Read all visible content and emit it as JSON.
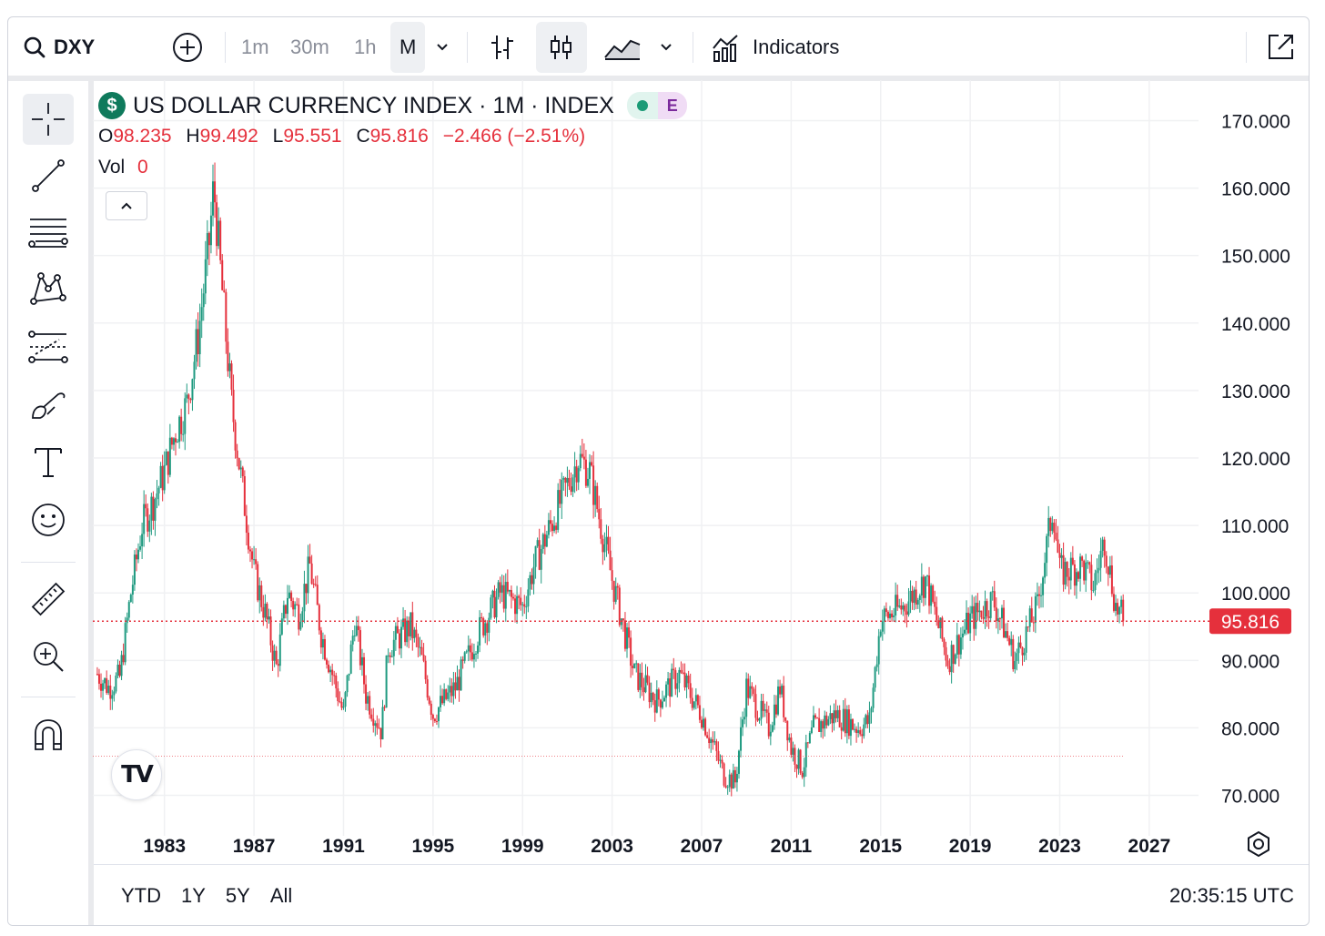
{
  "toolbar": {
    "symbol": "DXY",
    "intervals": [
      "1m",
      "30m",
      "1h",
      "M"
    ],
    "active_interval": "M",
    "indicators_label": "Indicators"
  },
  "legend": {
    "title": "US DOLLAR CURRENCY INDEX · 1M · INDEX",
    "status_letter": "E",
    "ohlc": {
      "o_label": "O",
      "o": "98.235",
      "h_label": "H",
      "h": "99.492",
      "l_label": "L",
      "l": "95.551",
      "c_label": "C",
      "c": "95.816",
      "change": "−2.466 (−2.51%)"
    },
    "vol_label": "Vol",
    "vol_value": "0"
  },
  "bottom": {
    "ranges": [
      "YTD",
      "1Y",
      "5Y",
      "All"
    ],
    "clock": "20:35:15 UTC"
  },
  "colors": {
    "up": "#1f9a80",
    "down": "#e5303c",
    "grid": "#f0f1f3",
    "price_line": "#e5303c"
  },
  "chart_data": {
    "type": "candlestick",
    "title": "US DOLLAR CURRENCY INDEX · 1M · INDEX",
    "interval": "1M",
    "last_price": 95.816,
    "last_price_label": "95.816",
    "y_ticks": [
      "170.000",
      "160.000",
      "150.000",
      "140.000",
      "130.000",
      "120.000",
      "110.000",
      "100.000",
      "90.000",
      "80.000",
      "70.000"
    ],
    "ylim": [
      64,
      176
    ],
    "x_ticks": [
      "1983",
      "1987",
      "1991",
      "1995",
      "1999",
      "2003",
      "2007",
      "2011",
      "2015",
      "2019",
      "2023",
      "2027"
    ],
    "xlim": [
      1979.8,
      2029.2
    ],
    "secondary_line": 75.8,
    "series": [
      {
        "values": [
          [
            1980.0,
            88.0
          ],
          [
            1980.5,
            86.0
          ],
          [
            1981.0,
            87.5
          ],
          [
            1981.5,
            100.0
          ],
          [
            1982.0,
            110.0
          ],
          [
            1982.5,
            113.5
          ],
          [
            1983.0,
            118.0
          ],
          [
            1983.5,
            124.0
          ],
          [
            1984.0,
            128.0
          ],
          [
            1984.5,
            138.0
          ],
          [
            1985.0,
            152.0
          ],
          [
            1985.2,
            160.4
          ],
          [
            1985.5,
            148.0
          ],
          [
            1986.0,
            128.0
          ],
          [
            1986.5,
            115.0
          ],
          [
            1987.0,
            103.0
          ],
          [
            1987.5,
            97.0
          ],
          [
            1988.0,
            89.0
          ],
          [
            1988.5,
            100.0
          ],
          [
            1989.0,
            97.0
          ],
          [
            1989.5,
            104.0
          ],
          [
            1990.0,
            94.0
          ],
          [
            1990.5,
            88.0
          ],
          [
            1991.0,
            82.0
          ],
          [
            1991.5,
            96.0
          ],
          [
            1992.0,
            85.0
          ],
          [
            1992.7,
            79.5
          ],
          [
            1993.0,
            92.0
          ],
          [
            1994.0,
            95.0
          ],
          [
            1994.5,
            90.0
          ],
          [
            1995.0,
            82.0
          ],
          [
            1996.0,
            86.0
          ],
          [
            1997.0,
            94.0
          ],
          [
            1998.0,
            100.0
          ],
          [
            1999.0,
            98.0
          ],
          [
            1999.5,
            104.0
          ],
          [
            2000.5,
            112.0
          ],
          [
            2001.5,
            120.0
          ],
          [
            2002.0,
            118.0
          ],
          [
            2002.5,
            110.0
          ],
          [
            2003.0,
            102.0
          ],
          [
            2004.0,
            88.0
          ],
          [
            2005.0,
            84.0
          ],
          [
            2006.0,
            88.0
          ],
          [
            2007.0,
            82.0
          ],
          [
            2008.0,
            73.0
          ],
          [
            2008.5,
            72.0
          ],
          [
            2009.0,
            86.0
          ],
          [
            2010.0,
            80.0
          ],
          [
            2010.5,
            86.0
          ],
          [
            2011.0,
            77.0
          ],
          [
            2011.5,
            74.0
          ],
          [
            2012.0,
            80.0
          ],
          [
            2013.0,
            82.0
          ],
          [
            2014.0,
            80.0
          ],
          [
            2014.5,
            81.0
          ],
          [
            2015.0,
            96.0
          ],
          [
            2016.0,
            98.0
          ],
          [
            2017.0,
            102.0
          ],
          [
            2018.0,
            90.0
          ],
          [
            2019.0,
            96.0
          ],
          [
            2020.0,
            99.0
          ],
          [
            2020.5,
            95.0
          ],
          [
            2021.0,
            90.0
          ],
          [
            2022.0,
            98.0
          ],
          [
            2022.7,
            113.0
          ],
          [
            2023.0,
            103.0
          ],
          [
            2024.0,
            104.0
          ],
          [
            2024.5,
            101.0
          ],
          [
            2025.0,
            108.0
          ],
          [
            2025.5,
            98.0
          ],
          [
            2025.9,
            95.816
          ]
        ]
      }
    ]
  }
}
